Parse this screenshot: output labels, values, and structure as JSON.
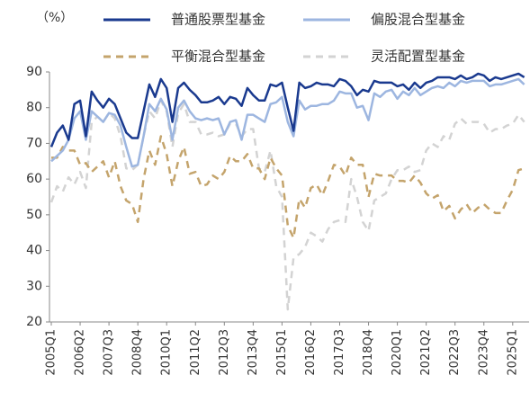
{
  "chart_data": {
    "type": "line",
    "y_axis_label": "（%）",
    "legend": "top",
    "categories": [
      "2005Q1",
      null,
      null,
      null,
      null,
      "2006Q2",
      null,
      null,
      null,
      null,
      "2007Q3",
      null,
      null,
      null,
      null,
      "2008Q4",
      null,
      null,
      null,
      null,
      "2010Q1",
      null,
      null,
      null,
      null,
      "2011Q2",
      null,
      null,
      null,
      null,
      "2012Q3",
      null,
      null,
      null,
      null,
      "2013Q4",
      null,
      null,
      null,
      null,
      "2015Q1",
      null,
      null,
      null,
      null,
      "2016Q2",
      null,
      null,
      null,
      null,
      "2017Q3",
      null,
      null,
      null,
      null,
      "2018Q4",
      null,
      null,
      null,
      null,
      "2020Q1",
      null,
      null,
      null,
      null,
      "2021Q2",
      null,
      null,
      null,
      null,
      "2022Q3",
      null,
      null,
      null,
      null,
      "2023Q4",
      null,
      null,
      null,
      null,
      "2025Q1",
      null,
      null
    ],
    "ylim": [
      20,
      90
    ],
    "yticks": [
      20,
      30,
      40,
      50,
      60,
      70,
      80,
      90
    ],
    "series": [
      {
        "name": "普通股票型基金",
        "color": "#1a3a8f",
        "dash": false,
        "values": [
          69,
          73,
          75,
          71,
          81,
          82,
          72,
          84.5,
          82,
          80,
          82.5,
          81,
          77,
          73,
          71.5,
          71.5,
          79,
          86.5,
          83,
          88,
          85.5,
          76,
          85.5,
          87,
          85,
          83.5,
          81.5,
          81.5,
          82,
          83,
          81,
          83,
          82.5,
          80.5,
          85.5,
          83.5,
          82,
          82,
          86.5,
          86,
          87,
          80,
          73.5,
          87,
          85.5,
          86,
          87,
          86.5,
          86.5,
          86,
          88,
          87.5,
          86,
          83.5,
          85,
          84.5,
          87.5,
          87,
          87,
          87,
          86,
          86.5,
          85,
          87,
          85.5,
          87,
          87.5,
          88.5,
          88.5,
          88.5,
          88,
          89,
          88,
          88.5,
          89.5,
          89,
          87.5,
          88.5,
          88,
          88.5,
          89,
          89.5,
          88.5
        ]
      },
      {
        "name": "偏股混合型基金",
        "color": "#9db6e0",
        "dash": false,
        "values": [
          65,
          66.5,
          68,
          71,
          77,
          79,
          71,
          79,
          77.5,
          76,
          78.5,
          78,
          75,
          69,
          63.5,
          64,
          72,
          81,
          79,
          82.5,
          79.5,
          71,
          80,
          82,
          79,
          77,
          76.5,
          77,
          76.5,
          77,
          72.5,
          76,
          76.5,
          71,
          78,
          78,
          77,
          76,
          81,
          81.5,
          83,
          76,
          72,
          82,
          79.5,
          80.5,
          80.5,
          81,
          81,
          82,
          84.5,
          84,
          84,
          80,
          80.5,
          76.5,
          84,
          83,
          84.5,
          85,
          82.5,
          84.5,
          83.5,
          85.5,
          83.5,
          84.5,
          85.5,
          86,
          85.5,
          87,
          86,
          87.5,
          87,
          87.5,
          87.5,
          87.5,
          86,
          86.5,
          86.5,
          87,
          87.5,
          88,
          86.5
        ]
      },
      {
        "name": "平衡混合型基金",
        "color": "#c4a46c",
        "dash": true,
        "values": [
          66,
          66,
          69,
          68,
          68,
          64,
          64.5,
          62,
          63.5,
          65,
          60.5,
          65,
          58,
          54,
          53,
          48,
          60,
          68,
          64,
          72,
          67,
          58,
          65,
          69,
          61.5,
          62,
          58,
          58.5,
          61,
          60,
          62,
          66.5,
          65,
          65,
          67,
          63,
          63,
          60,
          66,
          63,
          61,
          47,
          43.5,
          54.5,
          52,
          57.5,
          58.5,
          55.5,
          59.5,
          64,
          63.5,
          61,
          66,
          64,
          64,
          55,
          61.5,
          61,
          61,
          61,
          59.5,
          59.5,
          59,
          61,
          59,
          56,
          54.5,
          55.5,
          51,
          52.5,
          49,
          51.5,
          53,
          50.5,
          52,
          53,
          51.5,
          50.5,
          50.5,
          54,
          57,
          62.5,
          63
        ]
      },
      {
        "name": "灵活配置型基金",
        "color": "#d3d3d3",
        "dash": true,
        "values": [
          53.5,
          58,
          56.5,
          60.5,
          58.5,
          62,
          57.5,
          76,
          77.5,
          76,
          78.5,
          77,
          72,
          63,
          62.5,
          64,
          72,
          79,
          77,
          82,
          79,
          69,
          78.5,
          81,
          76,
          76,
          72.5,
          72.5,
          73,
          72,
          72.5,
          75.5,
          75.5,
          72,
          74,
          74,
          63,
          62,
          68,
          58,
          55,
          23.5,
          38,
          39,
          41,
          45,
          44,
          42.5,
          46,
          48,
          48.5,
          48,
          60,
          55,
          48,
          45.5,
          54,
          55,
          56,
          60,
          62.5,
          62.5,
          63.5,
          62,
          62.5,
          68,
          70,
          69,
          72,
          71,
          75.5,
          77,
          75.5,
          76,
          76,
          75.5,
          73,
          74,
          74,
          75,
          75.5,
          78,
          76
        ]
      }
    ]
  }
}
